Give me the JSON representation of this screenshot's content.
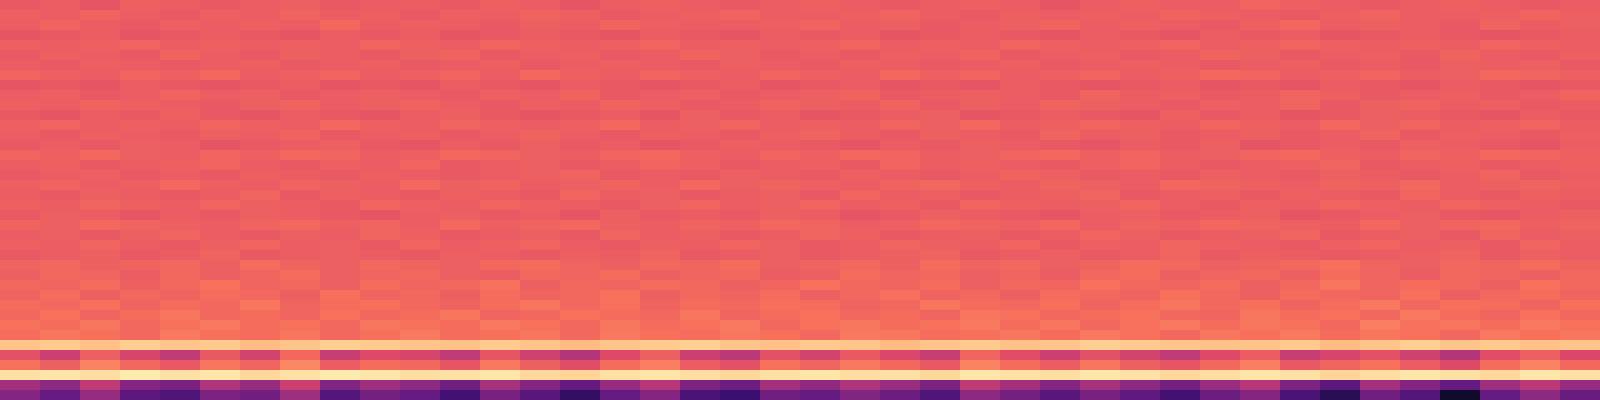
{
  "chart_data": {
    "type": "heatmap",
    "tick_labels": false,
    "zlim": [
      0,
      100
    ],
    "cells": [
      [
        64,
        65,
        63,
        66,
        65,
        64,
        65,
        66,
        64,
        65,
        65,
        64,
        66,
        65,
        63,
        65,
        66,
        65,
        64,
        65,
        66,
        65,
        64,
        65,
        66,
        65,
        63,
        65,
        66,
        65,
        65,
        67,
        66,
        65,
        64,
        65,
        66,
        65,
        64,
        65
      ],
      [
        66,
        65,
        67,
        65,
        64,
        66,
        65,
        67,
        65,
        66,
        64,
        66,
        65,
        67,
        66,
        64,
        65,
        66,
        67,
        65,
        65,
        66,
        67,
        65,
        64,
        66,
        65,
        66,
        65,
        67,
        66,
        65,
        64,
        66,
        67,
        65,
        65,
        66,
        67,
        66
      ],
      [
        65,
        67,
        65,
        64,
        66,
        65,
        66,
        65,
        68,
        65,
        66,
        65,
        64,
        66,
        65,
        67,
        66,
        65,
        65,
        66,
        67,
        65,
        66,
        64,
        65,
        66,
        67,
        65,
        66,
        65,
        64,
        66,
        68,
        65,
        66,
        65,
        64,
        67,
        65,
        66
      ],
      [
        63,
        64,
        65,
        63,
        64,
        65,
        64,
        63,
        65,
        64,
        65,
        63,
        64,
        65,
        64,
        63,
        65,
        64,
        63,
        65,
        64,
        65,
        63,
        64,
        65,
        64,
        63,
        65,
        64,
        63,
        65,
        64,
        65,
        63,
        64,
        65,
        64,
        63,
        64,
        65
      ],
      [
        66,
        65,
        66,
        67,
        65,
        66,
        65,
        66,
        65,
        67,
        66,
        65,
        67,
        66,
        65,
        66,
        67,
        65,
        66,
        65,
        66,
        67,
        65,
        66,
        65,
        67,
        66,
        65,
        66,
        67,
        65,
        66,
        67,
        66,
        65,
        66,
        65,
        67,
        66,
        65
      ],
      [
        64,
        66,
        65,
        64,
        67,
        65,
        64,
        66,
        65,
        64,
        66,
        67,
        64,
        65,
        66,
        64,
        65,
        67,
        66,
        64,
        65,
        64,
        66,
        65,
        67,
        64,
        65,
        66,
        64,
        65,
        67,
        66,
        64,
        65,
        66,
        64,
        67,
        65,
        64,
        66
      ],
      [
        65,
        64,
        66,
        65,
        64,
        65,
        66,
        64,
        65,
        66,
        64,
        65,
        66,
        64,
        65,
        66,
        65,
        64,
        66,
        65,
        64,
        66,
        65,
        64,
        65,
        66,
        64,
        65,
        66,
        65,
        64,
        65,
        66,
        64,
        65,
        64,
        66,
        65,
        66,
        64
      ],
      [
        67,
        66,
        65,
        67,
        66,
        68,
        65,
        66,
        67,
        65,
        66,
        67,
        65,
        68,
        66,
        65,
        67,
        66,
        65,
        67,
        66,
        65,
        68,
        66,
        67,
        65,
        66,
        67,
        65,
        66,
        68,
        67,
        65,
        66,
        67,
        65,
        66,
        68,
        67,
        66
      ],
      [
        63,
        64,
        63,
        65,
        64,
        63,
        64,
        65,
        63,
        64,
        63,
        65,
        64,
        63,
        65,
        64,
        63,
        64,
        65,
        63,
        64,
        65,
        63,
        64,
        63,
        65,
        64,
        63,
        64,
        65,
        63,
        64,
        63,
        65,
        64,
        63,
        65,
        64,
        63,
        64
      ],
      [
        65,
        66,
        64,
        65,
        67,
        65,
        66,
        64,
        65,
        66,
        65,
        64,
        66,
        65,
        67,
        64,
        65,
        66,
        64,
        65,
        66,
        67,
        64,
        65,
        66,
        65,
        64,
        67,
        65,
        66,
        64,
        65,
        67,
        66,
        64,
        65,
        66,
        64,
        65,
        67
      ],
      [
        66,
        65,
        67,
        66,
        65,
        64,
        66,
        67,
        65,
        66,
        67,
        65,
        64,
        66,
        65,
        67,
        66,
        64,
        65,
        67,
        66,
        65,
        67,
        64,
        66,
        65,
        67,
        66,
        65,
        64,
        66,
        65,
        67,
        64,
        66,
        67,
        65,
        66,
        64,
        65
      ],
      [
        64,
        63,
        65,
        64,
        66,
        64,
        63,
        65,
        64,
        63,
        65,
        66,
        64,
        63,
        64,
        65,
        63,
        66,
        64,
        65,
        63,
        64,
        65,
        66,
        63,
        64,
        65,
        64,
        63,
        66,
        64,
        65,
        63,
        64,
        66,
        65,
        64,
        63,
        65,
        64
      ],
      [
        66,
        67,
        65,
        66,
        65,
        67,
        66,
        65,
        68,
        66,
        65,
        67,
        66,
        65,
        66,
        68,
        65,
        66,
        67,
        65,
        66,
        65,
        67,
        66,
        68,
        65,
        66,
        67,
        66,
        65,
        67,
        66,
        65,
        68,
        66,
        67,
        65,
        66,
        67,
        65
      ],
      [
        65,
        64,
        66,
        65,
        64,
        66,
        65,
        67,
        64,
        65,
        66,
        64,
        65,
        67,
        65,
        64,
        66,
        65,
        64,
        66,
        67,
        65,
        64,
        66,
        65,
        64,
        67,
        65,
        66,
        64,
        65,
        66,
        64,
        65,
        67,
        64,
        66,
        65,
        64,
        66
      ],
      [
        64,
        65,
        64,
        66,
        65,
        63,
        64,
        65,
        66,
        64,
        63,
        65,
        64,
        66,
        64,
        65,
        63,
        64,
        66,
        65,
        64,
        63,
        65,
        64,
        66,
        65,
        64,
        63,
        65,
        64,
        66,
        63,
        64,
        65,
        64,
        66,
        65,
        64,
        63,
        65
      ],
      [
        67,
        66,
        68,
        66,
        65,
        67,
        66,
        68,
        67,
        65,
        66,
        68,
        67,
        66,
        65,
        67,
        68,
        66,
        65,
        67,
        66,
        68,
        67,
        65,
        66,
        67,
        68,
        66,
        67,
        65,
        66,
        67,
        68,
        66,
        65,
        67,
        66,
        68,
        67,
        66
      ],
      [
        65,
        66,
        64,
        65,
        66,
        67,
        65,
        64,
        66,
        65,
        67,
        64,
        65,
        66,
        64,
        65,
        67,
        66,
        64,
        65,
        66,
        64,
        67,
        65,
        66,
        65,
        64,
        66,
        67,
        65,
        64,
        65,
        66,
        67,
        64,
        65,
        66,
        64,
        65,
        66
      ],
      [
        64,
        65,
        66,
        64,
        65,
        64,
        66,
        65,
        64,
        66,
        65,
        64,
        65,
        66,
        67,
        64,
        65,
        64,
        66,
        65,
        64,
        66,
        65,
        64,
        65,
        67,
        66,
        64,
        65,
        64,
        66,
        65,
        64,
        66,
        65,
        64,
        65,
        67,
        64,
        65
      ],
      [
        66,
        67,
        65,
        66,
        68,
        66,
        65,
        67,
        66,
        65,
        68,
        66,
        67,
        65,
        66,
        67,
        65,
        68,
        66,
        67,
        66,
        65,
        67,
        68,
        66,
        65,
        67,
        66,
        65,
        68,
        67,
        66,
        65,
        67,
        66,
        68,
        65,
        66,
        67,
        66
      ],
      [
        65,
        64,
        66,
        65,
        64,
        65,
        67,
        64,
        66,
        65,
        64,
        66,
        65,
        64,
        67,
        65,
        66,
        64,
        65,
        66,
        64,
        67,
        65,
        66,
        64,
        65,
        66,
        67,
        64,
        65,
        66,
        64,
        66,
        65,
        64,
        67,
        65,
        64,
        66,
        65
      ],
      [
        66,
        65,
        67,
        66,
        65,
        67,
        66,
        65,
        64,
        67,
        66,
        65,
        67,
        66,
        65,
        64,
        66,
        67,
        65,
        66,
        67,
        65,
        66,
        64,
        67,
        66,
        65,
        66,
        67,
        65,
        64,
        66,
        65,
        67,
        66,
        65,
        67,
        66,
        65,
        64
      ],
      [
        64,
        66,
        65,
        63,
        65,
        64,
        66,
        65,
        64,
        63,
        65,
        66,
        64,
        65,
        63,
        66,
        64,
        65,
        64,
        66,
        65,
        63,
        64,
        66,
        65,
        64,
        63,
        65,
        66,
        64,
        65,
        66,
        63,
        64,
        65,
        66,
        64,
        63,
        65,
        66
      ],
      [
        67,
        66,
        68,
        67,
        66,
        65,
        67,
        68,
        66,
        67,
        65,
        68,
        66,
        67,
        68,
        66,
        65,
        67,
        66,
        68,
        67,
        65,
        66,
        68,
        67,
        66,
        68,
        65,
        67,
        66,
        68,
        67,
        66,
        65,
        68,
        66,
        67,
        68,
        66,
        67
      ],
      [
        65,
        66,
        64,
        66,
        67,
        65,
        64,
        66,
        65,
        67,
        66,
        64,
        65,
        66,
        64,
        67,
        65,
        66,
        64,
        65,
        67,
        66,
        64,
        65,
        66,
        64,
        65,
        67,
        66,
        64,
        65,
        66,
        67,
        64,
        65,
        66,
        64,
        67,
        65,
        66
      ],
      [
        66,
        65,
        67,
        65,
        64,
        66,
        67,
        65,
        66,
        64,
        67,
        65,
        66,
        67,
        65,
        64,
        66,
        65,
        67,
        66,
        64,
        65,
        67,
        66,
        65,
        67,
        64,
        66,
        65,
        67,
        66,
        65,
        64,
        66,
        67,
        65,
        66,
        64,
        67,
        65
      ],
      [
        64,
        65,
        66,
        64,
        65,
        67,
        64,
        65,
        66,
        65,
        64,
        66,
        65,
        64,
        66,
        65,
        67,
        64,
        65,
        66,
        64,
        65,
        66,
        67,
        64,
        65,
        66,
        64,
        65,
        67,
        64,
        66,
        65,
        64,
        65,
        66,
        67,
        64,
        66,
        65
      ],
      [
        67,
        68,
        66,
        67,
        68,
        66,
        69,
        67,
        66,
        68,
        67,
        66,
        68,
        69,
        67,
        66,
        68,
        67,
        69,
        66,
        67,
        68,
        66,
        69,
        67,
        68,
        66,
        67,
        69,
        68,
        66,
        67,
        68,
        70,
        67,
        66,
        68,
        67,
        69,
        67
      ],
      [
        66,
        68,
        67,
        65,
        68,
        66,
        67,
        69,
        66,
        67,
        68,
        66,
        65,
        68,
        67,
        69,
        66,
        67,
        68,
        65,
        66,
        69,
        67,
        68,
        66,
        67,
        65,
        68,
        69,
        66,
        67,
        68,
        66,
        69,
        67,
        65,
        68,
        67,
        66,
        68
      ],
      [
        68,
        67,
        69,
        66,
        68,
        70,
        67,
        68,
        66,
        69,
        67,
        68,
        70,
        66,
        68,
        67,
        69,
        68,
        66,
        67,
        70,
        68,
        67,
        69,
        66,
        68,
        67,
        70,
        68,
        67,
        69,
        66,
        68,
        71,
        67,
        69,
        68,
        66,
        70,
        68
      ],
      [
        67,
        69,
        66,
        68,
        67,
        69,
        68,
        66,
        70,
        67,
        68,
        66,
        69,
        67,
        68,
        70,
        66,
        68,
        67,
        69,
        66,
        68,
        70,
        67,
        68,
        66,
        69,
        68,
        67,
        70,
        68,
        66,
        69,
        68,
        67,
        70,
        66,
        68,
        69,
        67
      ],
      [
        69,
        68,
        70,
        67,
        69,
        68,
        71,
        67,
        69,
        70,
        68,
        67,
        69,
        71,
        68,
        70,
        67,
        69,
        68,
        70,
        69,
        67,
        68,
        71,
        69,
        68,
        70,
        67,
        69,
        71,
        68,
        70,
        67,
        69,
        72,
        68,
        70,
        69,
        67,
        70
      ],
      [
        68,
        70,
        67,
        69,
        71,
        68,
        69,
        67,
        70,
        68,
        69,
        71,
        67,
        68,
        70,
        69,
        68,
        71,
        67,
        69,
        70,
        68,
        69,
        67,
        71,
        70,
        68,
        69,
        70,
        68,
        67,
        71,
        69,
        70,
        68,
        72,
        69,
        67,
        70,
        68
      ],
      [
        70,
        69,
        71,
        68,
        70,
        72,
        69,
        70,
        68,
        71,
        70,
        69,
        72,
        70,
        68,
        71,
        69,
        70,
        72,
        68,
        70,
        71,
        69,
        70,
        72,
        69,
        71,
        68,
        70,
        72,
        69,
        71,
        70,
        68,
        73,
        70,
        71,
        69,
        72,
        70
      ],
      [
        69,
        71,
        70,
        68,
        72,
        70,
        69,
        71,
        68,
        70,
        72,
        69,
        70,
        71,
        68,
        72,
        70,
        69,
        71,
        70,
        68,
        72,
        71,
        69,
        70,
        71,
        69,
        72,
        70,
        68,
        71,
        70,
        72,
        69,
        71,
        70,
        68,
        72,
        70,
        71
      ],
      [
        88,
        89,
        87,
        90,
        88,
        89,
        86,
        88,
        90,
        89,
        88,
        87,
        89,
        88,
        86,
        88,
        89,
        90,
        88,
        87,
        89,
        88,
        86,
        88,
        89,
        87,
        88,
        90,
        89,
        88,
        87,
        88,
        89,
        86,
        88,
        90,
        88,
        89,
        87,
        88
      ],
      [
        62,
        55,
        66,
        58,
        52,
        64,
        57,
        68,
        54,
        60,
        58,
        52,
        63,
        56,
        49,
        60,
        66,
        55,
        51,
        62,
        57,
        64,
        59,
        54,
        67,
        61,
        55,
        62,
        57,
        52,
        60,
        65,
        54,
        58,
        62,
        56,
        49,
        61,
        66,
        59
      ],
      [
        70,
        66,
        74,
        68,
        64,
        71,
        67,
        75,
        65,
        69,
        68,
        63,
        72,
        66,
        61,
        69,
        73,
        65,
        62,
        70,
        67,
        72,
        68,
        64,
        74,
        69,
        65,
        71,
        66,
        63,
        68,
        73,
        64,
        67,
        70,
        65,
        60,
        69,
        74,
        68
      ],
      [
        94,
        95,
        93,
        96,
        94,
        95,
        92,
        94,
        96,
        95,
        93,
        94,
        95,
        92,
        91,
        94,
        95,
        93,
        92,
        94,
        95,
        93,
        94,
        92,
        95,
        94,
        93,
        95,
        94,
        92,
        93,
        95,
        94,
        91,
        93,
        95,
        94,
        92,
        95,
        94
      ],
      [
        45,
        40,
        52,
        38,
        35,
        48,
        42,
        55,
        37,
        44,
        40,
        33,
        46,
        38,
        30,
        42,
        50,
        36,
        32,
        45,
        41,
        48,
        43,
        36,
        52,
        45,
        38,
        46,
        40,
        34,
        43,
        50,
        36,
        28,
        45,
        38,
        30,
        44,
        51,
        42
      ],
      [
        38,
        30,
        42,
        28,
        25,
        36,
        33,
        44,
        26,
        34,
        30,
        22,
        35,
        27,
        18,
        30,
        38,
        24,
        20,
        33,
        30,
        37,
        32,
        25,
        40,
        34,
        27,
        35,
        29,
        22,
        32,
        38,
        24,
        15,
        33,
        26,
        8,
        30,
        40,
        31
      ]
    ]
  }
}
